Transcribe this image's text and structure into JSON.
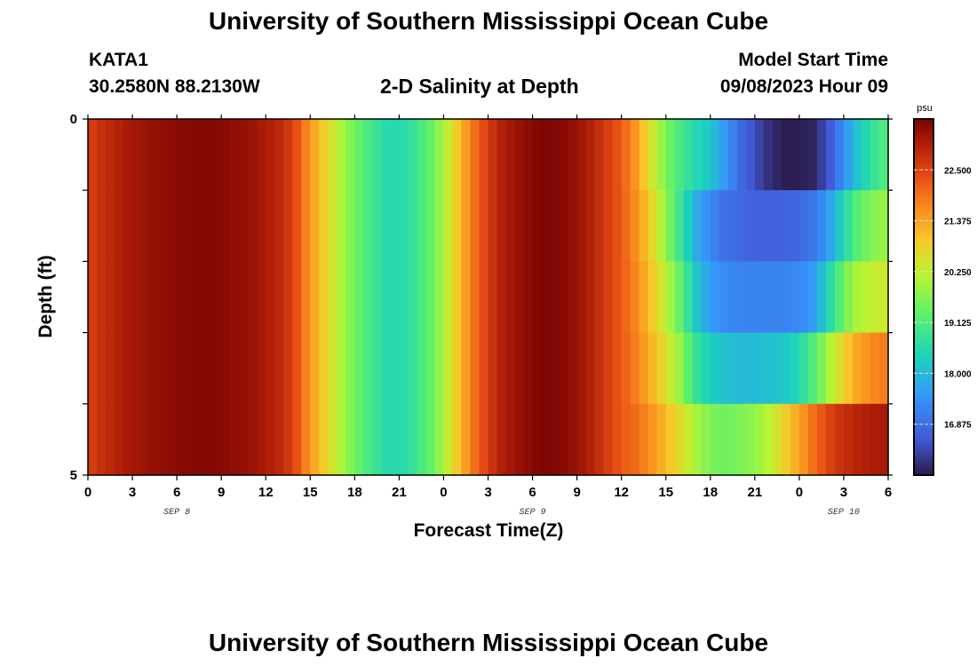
{
  "header": {
    "title": "University of Southern Mississippi Ocean Cube",
    "station": "KATA1",
    "coords": "30.2580N  88.2130W",
    "plot_title": "2-D Salinity at Depth",
    "model_label": "Model Start Time",
    "model_time": "09/08/2023 Hour 09"
  },
  "footer": {
    "title": "University of Southern Mississippi Ocean Cube"
  },
  "chart_data": {
    "type": "heatmap",
    "title": "2-D Salinity at Depth",
    "xlabel": "Forecast Time(Z)",
    "ylabel": "Depth (ft)",
    "x_tick_labels": [
      "0",
      "3",
      "6",
      "9",
      "12",
      "15",
      "18",
      "21",
      "0",
      "3",
      "6",
      "9",
      "12",
      "15",
      "18",
      "21",
      "0",
      "3",
      "6"
    ],
    "x_hours_range": [
      0,
      54
    ],
    "date_labels": [
      {
        "text": "SEP 8",
        "hour": 6
      },
      {
        "text": "SEP 9",
        "hour": 30
      },
      {
        "text": "SEP 10",
        "hour": 51
      }
    ],
    "y_tick_labels": [
      "0",
      "5"
    ],
    "ylim": [
      0,
      5
    ],
    "depth_layers": 5,
    "colorbar": {
      "unit": "psu",
      "min": 15.75,
      "max": 23.625,
      "ticks": [
        "22.500",
        "21.375",
        "20.250",
        "19.125",
        "18.000",
        "16.875"
      ],
      "tick_values": [
        22.5,
        21.375,
        20.25,
        19.125,
        18.0,
        16.875
      ]
    },
    "hour_knots": [
      0,
      1,
      3,
      5,
      7,
      9,
      11,
      13,
      14,
      15,
      16,
      17,
      18,
      19,
      20,
      21,
      22,
      23,
      24,
      25,
      26,
      27,
      28,
      30,
      31,
      32,
      33,
      34,
      35,
      36,
      37,
      38,
      39,
      40,
      41,
      42,
      43,
      44,
      45,
      46,
      47,
      48,
      49,
      50,
      51,
      52,
      53,
      54
    ],
    "salinity": [
      [
        22.5,
        22.8,
        23.2,
        23.4,
        23.5,
        23.5,
        23.3,
        22.9,
        22.4,
        21.5,
        20.8,
        20.1,
        19.5,
        19.0,
        18.6,
        18.5,
        18.8,
        19.3,
        20.0,
        21.0,
        21.9,
        22.6,
        23.1,
        23.5,
        23.6,
        23.5,
        23.3,
        23.0,
        22.6,
        22.2,
        21.5,
        20.5,
        19.6,
        19.0,
        18.5,
        18.2,
        17.5,
        16.8,
        16.4,
        16.0,
        15.8,
        15.8,
        15.9,
        16.5,
        17.4,
        18.2,
        18.8,
        19.2
      ],
      [
        22.5,
        22.8,
        23.2,
        23.4,
        23.5,
        23.5,
        23.3,
        22.9,
        22.4,
        21.5,
        20.8,
        20.1,
        19.5,
        19.0,
        18.6,
        18.5,
        18.8,
        19.3,
        20.0,
        21.0,
        21.9,
        22.6,
        23.1,
        23.5,
        23.6,
        23.5,
        23.3,
        23.0,
        22.6,
        22.2,
        21.6,
        20.8,
        19.8,
        18.8,
        17.8,
        17.3,
        16.9,
        16.8,
        16.7,
        16.7,
        16.7,
        16.8,
        17.0,
        17.6,
        18.5,
        19.3,
        19.7,
        19.9
      ],
      [
        22.5,
        22.8,
        23.2,
        23.4,
        23.5,
        23.5,
        23.3,
        22.9,
        22.4,
        21.5,
        20.8,
        20.1,
        19.5,
        19.0,
        18.6,
        18.5,
        18.8,
        19.3,
        20.0,
        21.0,
        21.9,
        22.6,
        23.1,
        23.5,
        23.6,
        23.5,
        23.3,
        23.0,
        22.6,
        22.2,
        21.7,
        21.0,
        20.2,
        19.3,
        18.2,
        17.6,
        17.3,
        17.2,
        17.2,
        17.2,
        17.2,
        17.3,
        17.6,
        18.5,
        19.5,
        20.1,
        20.3,
        20.4
      ],
      [
        22.5,
        22.8,
        23.2,
        23.4,
        23.5,
        23.5,
        23.3,
        22.9,
        22.4,
        21.5,
        20.8,
        20.1,
        19.5,
        19.0,
        18.6,
        18.5,
        18.8,
        19.3,
        20.0,
        21.0,
        21.9,
        22.6,
        23.1,
        23.5,
        23.6,
        23.5,
        23.3,
        23.0,
        22.6,
        22.2,
        21.8,
        21.2,
        20.6,
        19.8,
        18.8,
        18.3,
        18.1,
        18.0,
        18.0,
        18.1,
        18.2,
        18.5,
        19.2,
        20.0,
        20.8,
        21.4,
        21.7,
        21.9
      ],
      [
        22.5,
        22.8,
        23.2,
        23.4,
        23.5,
        23.5,
        23.3,
        22.9,
        22.4,
        21.5,
        20.8,
        20.1,
        19.5,
        19.0,
        18.6,
        18.5,
        18.8,
        19.3,
        20.0,
        21.0,
        21.9,
        22.6,
        23.1,
        23.5,
        23.6,
        23.5,
        23.3,
        23.0,
        22.6,
        22.2,
        21.9,
        21.4,
        20.9,
        20.2,
        19.4,
        18.9,
        18.7,
        18.7,
        18.8,
        19.0,
        19.4,
        20.0,
        20.8,
        21.5,
        22.0,
        22.4,
        22.7,
        22.9
      ],
      [
        22.5,
        22.8,
        23.2,
        23.4,
        23.5,
        23.5,
        23.3,
        22.9,
        22.4,
        21.5,
        20.8,
        20.1,
        19.5,
        19.0,
        18.6,
        18.5,
        18.8,
        19.3,
        20.0,
        21.0,
        21.9,
        22.6,
        23.1,
        23.5,
        23.6,
        23.5,
        23.3,
        23.0,
        22.6,
        22.2,
        22.0,
        21.6,
        21.1,
        20.6,
        20.0,
        19.6,
        19.5,
        19.6,
        19.8,
        20.2,
        20.8,
        21.4,
        22.0,
        22.5,
        22.8,
        23.0,
        23.1,
        23.2
      ]
    ]
  }
}
